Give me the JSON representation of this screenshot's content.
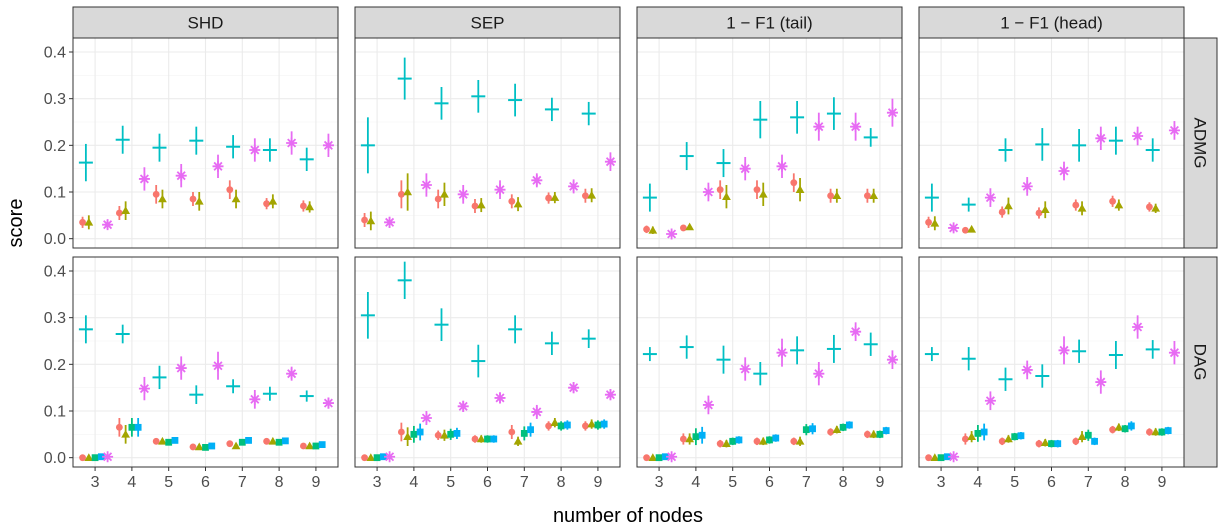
{
  "chart_data": {
    "type": "scatter",
    "xlabel": "number of nodes",
    "ylabel": "score",
    "x": [
      3,
      4,
      5,
      6,
      7,
      8,
      9
    ],
    "ylim": [
      -0.02,
      0.43
    ],
    "yticks": [
      0.0,
      0.1,
      0.2,
      0.3,
      0.4
    ],
    "xticks": [
      3,
      4,
      5,
      6,
      7,
      8,
      9
    ],
    "columns": [
      "SHD",
      "SEP",
      "1 − F1 (tail)",
      "1 − F1 (head)"
    ],
    "rows": [
      "ADMG",
      "DAG"
    ],
    "grid": true,
    "series_colors": [
      "#f8766d",
      "#a3a500",
      "#00bf7d",
      "#00b0f6",
      "#e76bf3",
      "#00bfc4"
    ],
    "series_shapes": [
      "circle",
      "triangle",
      "square",
      "square",
      "asterisk",
      "plus"
    ],
    "panels": [
      {
        "row": "ADMG",
        "col": "SHD",
        "series": [
          {
            "values": [
              0.035,
              0.055,
              0.095,
              0.085,
              0.105,
              0.075,
              0.07
            ],
            "err": [
              0.012,
              0.015,
              0.02,
              0.015,
              0.02,
              0.012,
              0.012
            ]
          },
          {
            "values": [
              0.035,
              0.06,
              0.085,
              0.08,
              0.085,
              0.08,
              0.068
            ],
            "err": [
              0.015,
              0.02,
              0.02,
              0.02,
              0.02,
              0.015,
              0.012
            ]
          },
          {
            "values": [],
            "err": []
          },
          {
            "values": [],
            "err": []
          },
          {
            "values": [
              0.03,
              0.128,
              0.135,
              0.155,
              0.19,
              0.205,
              0.2
            ],
            "err": [
              0.01,
              0.025,
              0.025,
              0.025,
              0.025,
              0.025,
              0.025
            ]
          },
          {
            "values": [
              0.163,
              0.212,
              0.195,
              0.21,
              0.197,
              0.19,
              0.17
            ],
            "err": [
              0.04,
              0.03,
              0.03,
              0.03,
              0.025,
              0.025,
              0.025
            ]
          }
        ]
      },
      {
        "row": "ADMG",
        "col": "SEP",
        "series": [
          {
            "values": [
              0.04,
              0.095,
              0.085,
              0.07,
              0.08,
              0.087,
              0.092
            ],
            "err": [
              0.015,
              0.03,
              0.02,
              0.015,
              0.015,
              0.012,
              0.015
            ]
          },
          {
            "values": [
              0.038,
              0.1,
              0.095,
              0.072,
              0.074,
              0.088,
              0.093
            ],
            "err": [
              0.02,
              0.04,
              0.025,
              0.015,
              0.015,
              0.012,
              0.015
            ]
          },
          {
            "values": [],
            "err": []
          },
          {
            "values": [],
            "err": []
          },
          {
            "values": [
              0.035,
              0.115,
              0.095,
              0.105,
              0.125,
              0.112,
              0.165
            ],
            "err": [
              0.012,
              0.025,
              0.02,
              0.02,
              0.015,
              0.015,
              0.02
            ]
          },
          {
            "values": [
              0.2,
              0.343,
              0.29,
              0.305,
              0.297,
              0.277,
              0.268
            ],
            "err": [
              0.06,
              0.045,
              0.035,
              0.035,
              0.035,
              0.025,
              0.025
            ]
          }
        ]
      },
      {
        "row": "ADMG",
        "col": "1 − F1 (tail)",
        "series": [
          {
            "values": [
              0.02,
              0.023,
              0.105,
              0.105,
              0.12,
              0.092,
              0.092
            ],
            "err": [
              0.008,
              0.005,
              0.02,
              0.02,
              0.02,
              0.015,
              0.015
            ]
          },
          {
            "values": [
              0.018,
              0.025,
              0.09,
              0.095,
              0.105,
              0.092,
              0.092
            ],
            "err": [
              0.008,
              0.005,
              0.025,
              0.025,
              0.025,
              0.015,
              0.015
            ]
          },
          {
            "values": [],
            "err": []
          },
          {
            "values": [],
            "err": []
          },
          {
            "values": [
              0.01,
              0.1,
              0.15,
              0.155,
              0.24,
              0.24,
              0.27
            ],
            "err": [
              0.005,
              0.02,
              0.025,
              0.025,
              0.03,
              0.03,
              0.03
            ]
          },
          {
            "values": [
              0.088,
              0.177,
              0.162,
              0.255,
              0.26,
              0.268,
              0.217
            ],
            "err": [
              0.03,
              0.03,
              0.03,
              0.04,
              0.035,
              0.035,
              0.02
            ]
          }
        ]
      },
      {
        "row": "ADMG",
        "col": "1 − F1 (head)",
        "series": [
          {
            "values": [
              0.035,
              0.018,
              0.057,
              0.055,
              0.072,
              0.08,
              0.068
            ],
            "err": [
              0.012,
              0.004,
              0.012,
              0.012,
              0.012,
              0.012,
              0.01
            ]
          },
          {
            "values": [
              0.033,
              0.02,
              0.07,
              0.062,
              0.065,
              0.072,
              0.065
            ],
            "err": [
              0.015,
              0.005,
              0.018,
              0.018,
              0.015,
              0.012,
              0.01
            ]
          },
          {
            "values": [],
            "err": []
          },
          {
            "values": [],
            "err": []
          },
          {
            "values": [
              0.023,
              0.088,
              0.112,
              0.145,
              0.215,
              0.22,
              0.232
            ],
            "err": [
              0.008,
              0.02,
              0.02,
              0.02,
              0.025,
              0.02,
              0.02
            ]
          },
          {
            "values": [
              0.088,
              0.073,
              0.19,
              0.202,
              0.2,
              0.21,
              0.19
            ],
            "err": [
              0.03,
              0.015,
              0.025,
              0.035,
              0.035,
              0.03,
              0.025
            ]
          }
        ]
      },
      {
        "row": "DAG",
        "col": "SHD",
        "series": [
          {
            "values": [
              0.0,
              0.065,
              0.035,
              0.023,
              0.03,
              0.035,
              0.025
            ],
            "err": [
              0.002,
              0.02,
              0.005,
              0.004,
              0.005,
              0.004,
              0.004
            ]
          },
          {
            "values": [
              0.0,
              0.05,
              0.035,
              0.023,
              0.025,
              0.035,
              0.025
            ],
            "err": [
              0.002,
              0.02,
              0.005,
              0.004,
              0.004,
              0.004,
              0.004
            ]
          },
          {
            "values": [
              0.0,
              0.065,
              0.033,
              0.022,
              0.033,
              0.033,
              0.025
            ],
            "err": [
              0.002,
              0.02,
              0.004,
              0.004,
              0.005,
              0.004,
              0.004
            ]
          },
          {
            "values": [
              0.002,
              0.065,
              0.037,
              0.025,
              0.037,
              0.036,
              0.028
            ],
            "err": [
              0.002,
              0.02,
              0.004,
              0.004,
              0.005,
              0.004,
              0.004
            ]
          },
          {
            "values": [
              0.002,
              0.148,
              0.192,
              0.197,
              0.125,
              0.18,
              0.117
            ],
            "err": [
              0.003,
              0.025,
              0.025,
              0.03,
              0.02,
              0.015,
              0.012
            ]
          },
          {
            "values": [
              0.275,
              0.265,
              0.172,
              0.135,
              0.153,
              0.137,
              0.132
            ],
            "err": [
              0.03,
              0.02,
              0.025,
              0.02,
              0.015,
              0.015,
              0.012
            ]
          }
        ]
      },
      {
        "row": "DAG",
        "col": "SEP",
        "series": [
          {
            "values": [
              0.0,
              0.055,
              0.048,
              0.04,
              0.055,
              0.068,
              0.068
            ],
            "err": [
              0.002,
              0.02,
              0.01,
              0.008,
              0.015,
              0.01,
              0.01
            ]
          },
          {
            "values": [
              0.0,
              0.045,
              0.048,
              0.04,
              0.035,
              0.075,
              0.072
            ],
            "err": [
              0.002,
              0.02,
              0.012,
              0.008,
              0.01,
              0.01,
              0.01
            ]
          },
          {
            "values": [
              0.0,
              0.05,
              0.05,
              0.04,
              0.052,
              0.068,
              0.07
            ],
            "err": [
              0.002,
              0.018,
              0.012,
              0.008,
              0.015,
              0.01,
              0.01
            ]
          },
          {
            "values": [
              0.002,
              0.055,
              0.052,
              0.04,
              0.06,
              0.07,
              0.072
            ],
            "err": [
              0.002,
              0.018,
              0.012,
              0.008,
              0.015,
              0.01,
              0.01
            ]
          },
          {
            "values": [
              0.002,
              0.085,
              0.11,
              0.128,
              0.098,
              0.15,
              0.135
            ],
            "err": [
              0.003,
              0.015,
              0.012,
              0.012,
              0.015,
              0.012,
              0.012
            ]
          },
          {
            "values": [
              0.305,
              0.38,
              0.285,
              0.207,
              0.275,
              0.245,
              0.255
            ],
            "err": [
              0.05,
              0.04,
              0.035,
              0.035,
              0.03,
              0.025,
              0.02
            ]
          }
        ]
      },
      {
        "row": "DAG",
        "col": "1 − F1 (tail)",
        "series": [
          {
            "values": [
              0.0,
              0.04,
              0.03,
              0.035,
              0.035,
              0.055,
              0.05
            ],
            "err": [
              0.002,
              0.012,
              0.008,
              0.008,
              0.008,
              0.008,
              0.008
            ]
          },
          {
            "values": [
              0.0,
              0.04,
              0.03,
              0.035,
              0.035,
              0.06,
              0.05
            ],
            "err": [
              0.002,
              0.012,
              0.008,
              0.008,
              0.01,
              0.008,
              0.008
            ]
          },
          {
            "values": [
              0.0,
              0.045,
              0.035,
              0.038,
              0.06,
              0.065,
              0.05
            ],
            "err": [
              0.002,
              0.018,
              0.008,
              0.008,
              0.012,
              0.008,
              0.008
            ]
          },
          {
            "values": [
              0.002,
              0.048,
              0.038,
              0.042,
              0.062,
              0.07,
              0.058
            ],
            "err": [
              0.002,
              0.018,
              0.008,
              0.008,
              0.012,
              0.008,
              0.008
            ]
          },
          {
            "values": [
              0.002,
              0.113,
              0.19,
              0.225,
              0.18,
              0.27,
              0.21
            ],
            "err": [
              0.003,
              0.02,
              0.025,
              0.03,
              0.025,
              0.02,
              0.02
            ]
          },
          {
            "values": [
              0.222,
              0.237,
              0.21,
              0.18,
              0.23,
              0.233,
              0.243
            ],
            "err": [
              0.015,
              0.025,
              0.03,
              0.025,
              0.03,
              0.03,
              0.025
            ]
          }
        ]
      },
      {
        "row": "DAG",
        "col": "1 − F1 (head)",
        "series": [
          {
            "values": [
              0.0,
              0.04,
              0.035,
              0.03,
              0.035,
              0.06,
              0.055
            ],
            "err": [
              0.002,
              0.012,
              0.008,
              0.008,
              0.008,
              0.008,
              0.008
            ]
          },
          {
            "values": [
              0.0,
              0.045,
              0.04,
              0.032,
              0.045,
              0.065,
              0.055
            ],
            "err": [
              0.002,
              0.012,
              0.008,
              0.008,
              0.012,
              0.008,
              0.008
            ]
          },
          {
            "values": [
              0.0,
              0.052,
              0.045,
              0.03,
              0.048,
              0.062,
              0.055
            ],
            "err": [
              0.002,
              0.018,
              0.008,
              0.008,
              0.012,
              0.008,
              0.008
            ]
          },
          {
            "values": [
              0.002,
              0.055,
              0.047,
              0.03,
              0.035,
              0.068,
              0.058
            ],
            "err": [
              0.002,
              0.018,
              0.008,
              0.008,
              0.008,
              0.01,
              0.008
            ]
          },
          {
            "values": [
              0.002,
              0.122,
              0.188,
              0.23,
              0.162,
              0.28,
              0.225
            ],
            "err": [
              0.003,
              0.02,
              0.02,
              0.03,
              0.025,
              0.025,
              0.025
            ]
          },
          {
            "values": [
              0.222,
              0.212,
              0.168,
              0.175,
              0.228,
              0.22,
              0.232
            ],
            "err": [
              0.015,
              0.025,
              0.025,
              0.025,
              0.025,
              0.03,
              0.02
            ]
          }
        ]
      }
    ]
  }
}
